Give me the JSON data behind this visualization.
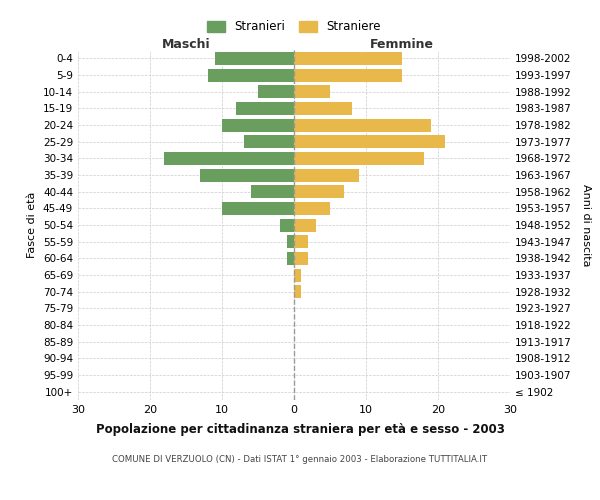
{
  "age_groups": [
    "100+",
    "95-99",
    "90-94",
    "85-89",
    "80-84",
    "75-79",
    "70-74",
    "65-69",
    "60-64",
    "55-59",
    "50-54",
    "45-49",
    "40-44",
    "35-39",
    "30-34",
    "25-29",
    "20-24",
    "15-19",
    "10-14",
    "5-9",
    "0-4"
  ],
  "birth_years": [
    "≤ 1902",
    "1903-1907",
    "1908-1912",
    "1913-1917",
    "1918-1922",
    "1923-1927",
    "1928-1932",
    "1933-1937",
    "1938-1942",
    "1943-1947",
    "1948-1952",
    "1953-1957",
    "1958-1962",
    "1963-1967",
    "1968-1972",
    "1973-1977",
    "1978-1982",
    "1983-1987",
    "1988-1992",
    "1993-1997",
    "1998-2002"
  ],
  "maschi": [
    0,
    0,
    0,
    0,
    0,
    0,
    0,
    0,
    1,
    1,
    2,
    10,
    6,
    13,
    18,
    7,
    10,
    8,
    5,
    12,
    11
  ],
  "femmine": [
    0,
    0,
    0,
    0,
    0,
    0,
    1,
    1,
    2,
    2,
    3,
    5,
    7,
    9,
    18,
    21,
    19,
    8,
    5,
    15,
    15
  ],
  "color_maschi": "#6a9e5e",
  "color_femmine": "#e8b84b",
  "title": "Popolazione per cittadinanza straniera per età e sesso - 2003",
  "subtitle": "COMUNE DI VERZUOLO (CN) - Dati ISTAT 1° gennaio 2003 - Elaborazione TUTTITALIA.IT",
  "xlabel_left": "Maschi",
  "xlabel_right": "Femmine",
  "ylabel_left": "Fasce di età",
  "ylabel_right": "Anni di nascita",
  "legend_maschi": "Stranieri",
  "legend_femmine": "Straniere",
  "xlim": 30,
  "bar_height": 0.78,
  "background_color": "#ffffff"
}
